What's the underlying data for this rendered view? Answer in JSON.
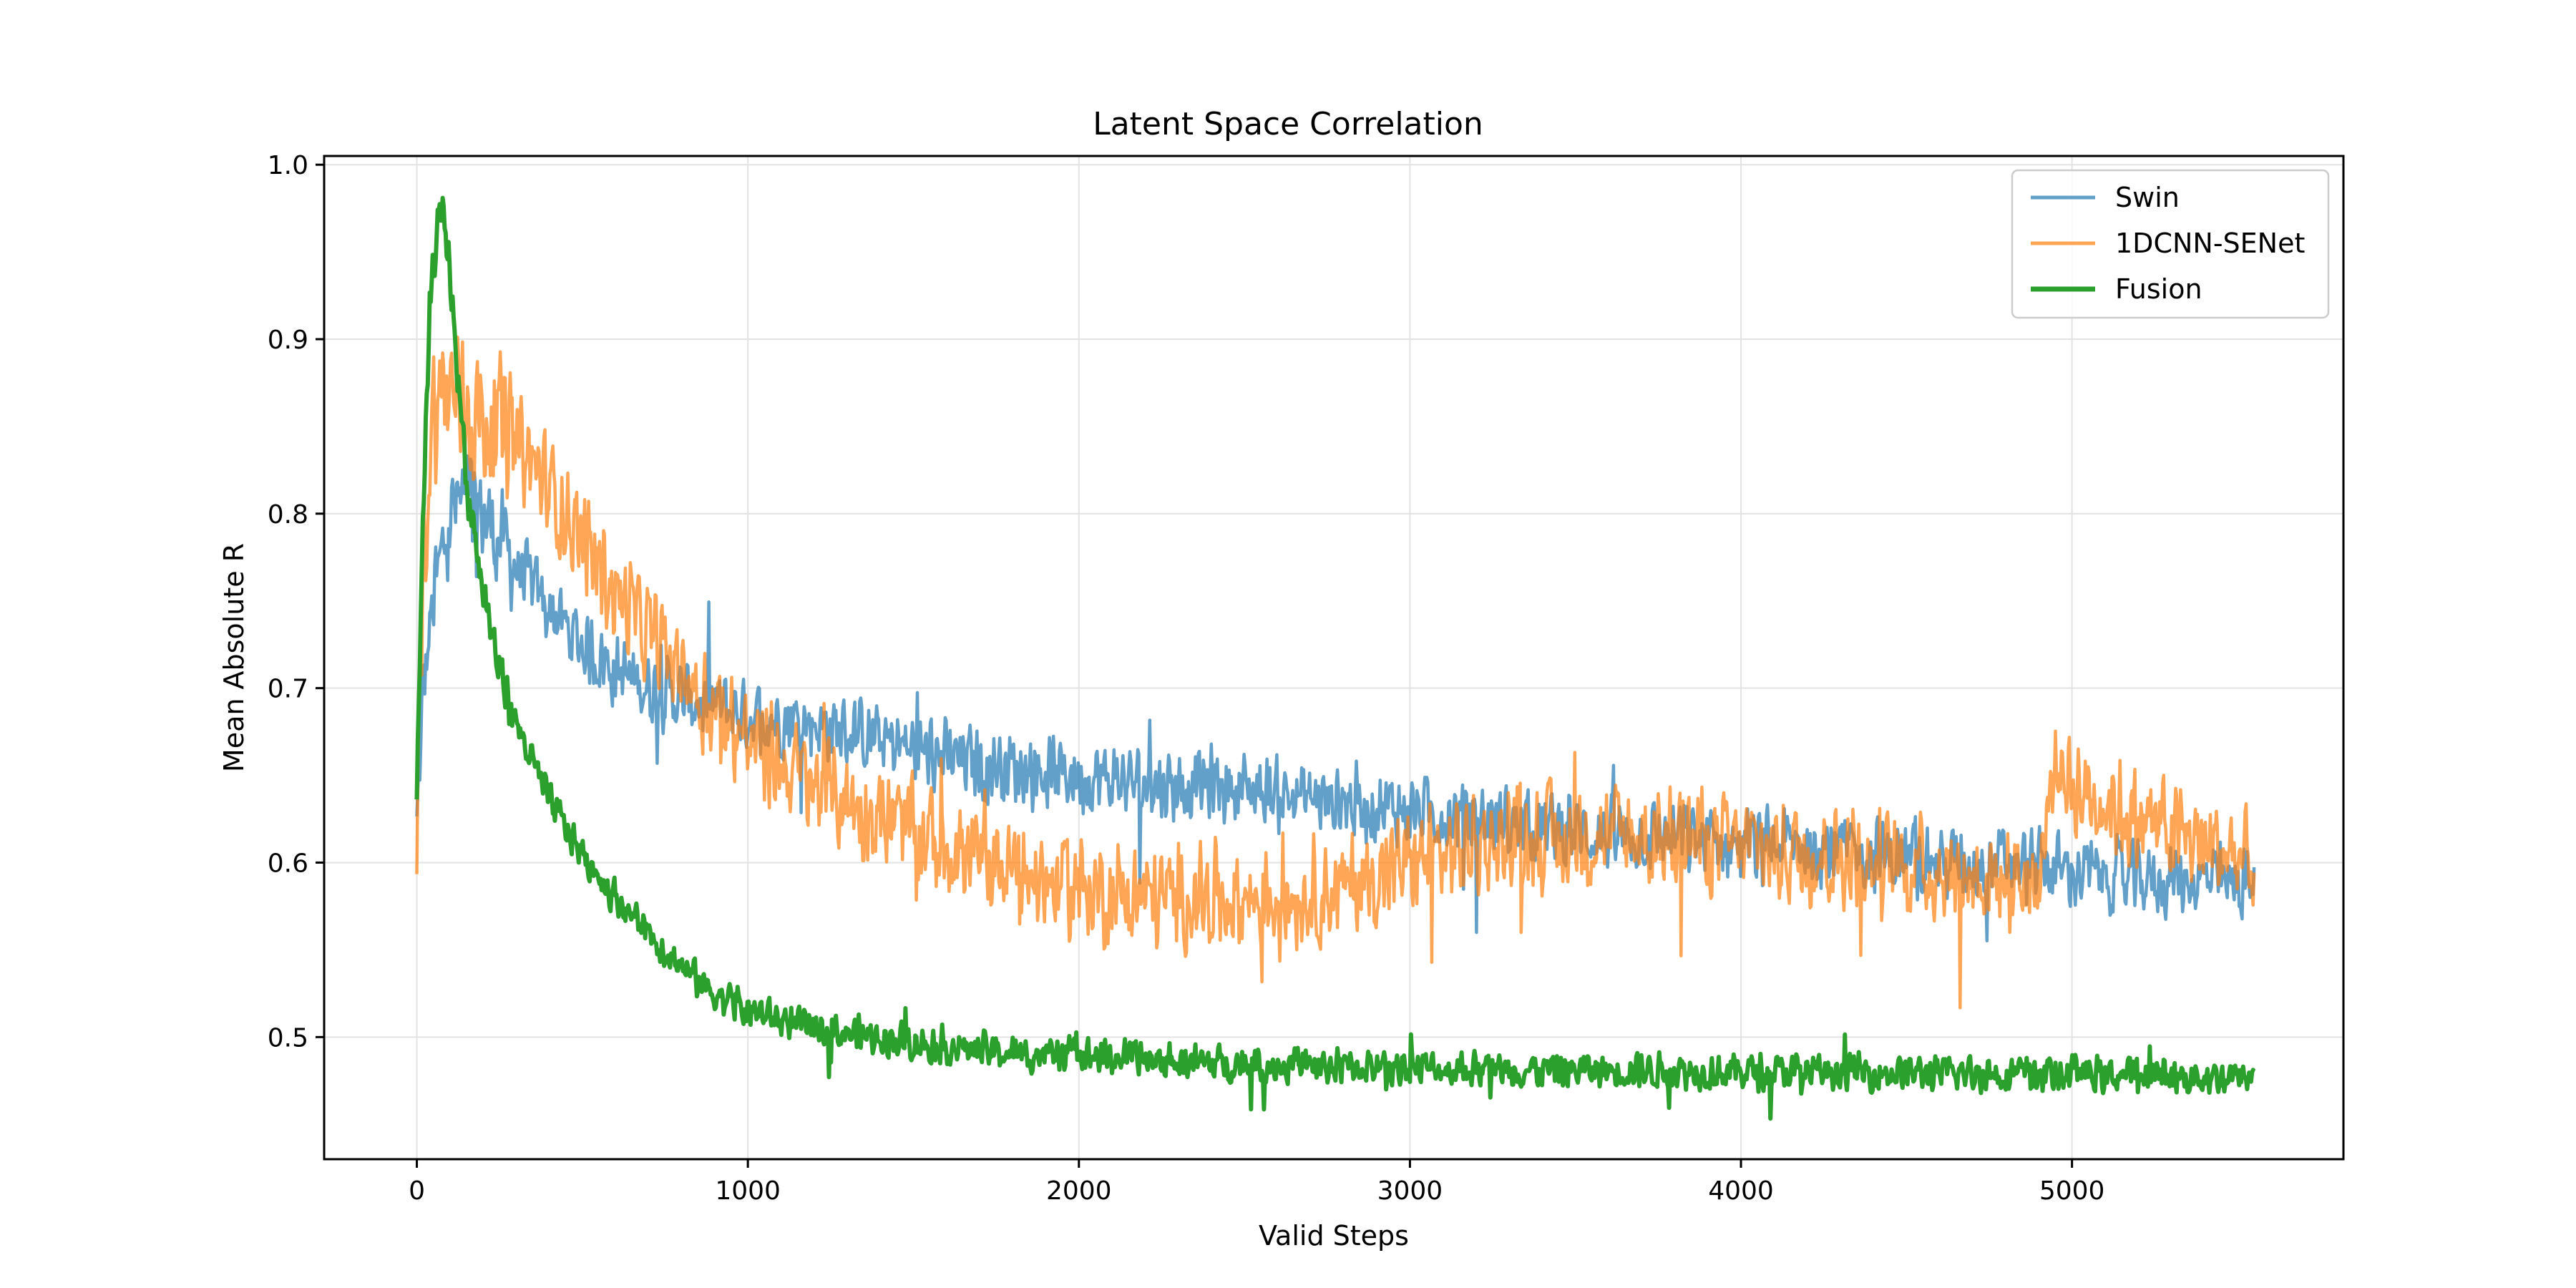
{
  "chart_data": {
    "type": "line",
    "title": "Latent Space Correlation",
    "xlabel": "Valid Steps",
    "ylabel": "Mean Absolute R",
    "xlim": [
      -280,
      5820
    ],
    "ylim": [
      0.43,
      1.005
    ],
    "xticks": [
      0,
      1000,
      2000,
      3000,
      4000,
      5000
    ],
    "yticks": [
      0.5,
      0.6,
      0.7,
      0.8,
      0.9,
      1.0
    ],
    "xtick_labels": [
      "0",
      "1000",
      "2000",
      "3000",
      "4000",
      "5000"
    ],
    "ytick_labels": [
      "0.5",
      "0.6",
      "0.7",
      "0.8",
      "0.9",
      "1.0"
    ],
    "grid": true,
    "legend_position": "upper right",
    "series": [
      {
        "name": "Swin",
        "color": "#1f77b4",
        "opacity": 0.7,
        "noise": 0.025,
        "x": [
          0,
          20,
          50,
          100,
          150,
          200,
          300,
          400,
          500,
          600,
          700,
          800,
          900,
          1000,
          1200,
          1400,
          1600,
          1800,
          2000,
          2200,
          2400,
          2600,
          2800,
          3000,
          3200,
          3400,
          3600,
          3800,
          4000,
          4200,
          4400,
          4600,
          4800,
          5000,
          5200,
          5400,
          5550
        ],
        "y": [
          0.62,
          0.7,
          0.75,
          0.8,
          0.81,
          0.8,
          0.77,
          0.745,
          0.725,
          0.71,
          0.7,
          0.695,
          0.69,
          0.685,
          0.68,
          0.67,
          0.66,
          0.655,
          0.65,
          0.645,
          0.645,
          0.64,
          0.635,
          0.63,
          0.625,
          0.62,
          0.615,
          0.615,
          0.61,
          0.61,
          0.605,
          0.6,
          0.6,
          0.595,
          0.59,
          0.59,
          0.585
        ]
      },
      {
        "name": "1DCNN-SENet",
        "color": "#ff7f0e",
        "opacity": 0.7,
        "noise": 0.035,
        "x": [
          0,
          20,
          50,
          100,
          150,
          200,
          300,
          400,
          500,
          600,
          700,
          800,
          900,
          1000,
          1200,
          1400,
          1600,
          1800,
          2000,
          2200,
          2400,
          2600,
          2800,
          3000,
          3200,
          3400,
          3600,
          3800,
          4000,
          4200,
          4400,
          4600,
          4800,
          4900,
          4950,
          5000,
          5200,
          5400,
          5550
        ],
        "y": [
          0.62,
          0.78,
          0.86,
          0.87,
          0.86,
          0.855,
          0.84,
          0.815,
          0.785,
          0.755,
          0.73,
          0.71,
          0.69,
          0.67,
          0.645,
          0.625,
          0.61,
          0.595,
          0.585,
          0.58,
          0.58,
          0.58,
          0.585,
          0.6,
          0.61,
          0.615,
          0.615,
          0.615,
          0.61,
          0.605,
          0.6,
          0.595,
          0.59,
          0.59,
          0.66,
          0.645,
          0.625,
          0.61,
          0.6
        ]
      },
      {
        "name": "Fusion",
        "color": "#2ca02c",
        "opacity": 1.0,
        "noise": 0.012,
        "x": [
          0,
          20,
          40,
          60,
          80,
          100,
          120,
          150,
          200,
          250,
          300,
          400,
          500,
          600,
          700,
          800,
          900,
          1000,
          1200,
          1400,
          1600,
          1800,
          2000,
          2200,
          2400,
          2600,
          2800,
          3000,
          3200,
          3400,
          3600,
          3800,
          4000,
          4200,
          4400,
          4600,
          4800,
          5000,
          5200,
          5400,
          5550
        ],
        "y": [
          0.64,
          0.8,
          0.92,
          0.965,
          0.97,
          0.94,
          0.89,
          0.82,
          0.755,
          0.71,
          0.68,
          0.635,
          0.605,
          0.58,
          0.56,
          0.54,
          0.525,
          0.515,
          0.505,
          0.5,
          0.495,
          0.49,
          0.49,
          0.487,
          0.485,
          0.484,
          0.483,
          0.482,
          0.482,
          0.481,
          0.481,
          0.481,
          0.48,
          0.48,
          0.48,
          0.479,
          0.479,
          0.479,
          0.478,
          0.477,
          0.477
        ]
      }
    ]
  }
}
